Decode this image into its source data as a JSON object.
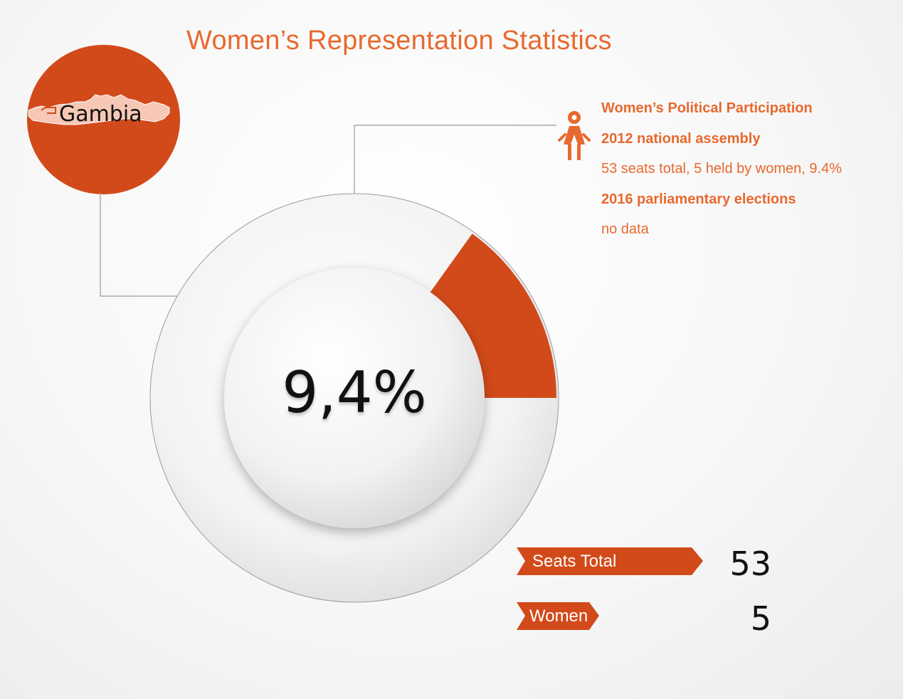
{
  "title": "Women’s Representation Statistics",
  "country": "Gambia",
  "center_label": "9,4%",
  "info": {
    "heading": "Women’s Political Participation",
    "assembly_label": "2012 national assembly",
    "assembly_detail": "53 seats total, 5 held by women, 9.4%",
    "elections_label": "2016 parliamentary elections",
    "elections_detail": "no data"
  },
  "legend": [
    {
      "label": "Seats Total",
      "value": "53"
    },
    {
      "label": "Women",
      "value": "5"
    }
  ],
  "colors": {
    "accent": "#d24a1a",
    "text_accent": "#e8692e",
    "ring": "#f2f2f2"
  },
  "icons": {
    "person": "woman-icon",
    "map": "gambia-map-icon"
  },
  "chart_data": {
    "type": "pie",
    "title": "Women’s Representation Statistics",
    "categories": [
      "Women",
      "Seats Total"
    ],
    "values": [
      5,
      53
    ],
    "percent": 9.4
  }
}
